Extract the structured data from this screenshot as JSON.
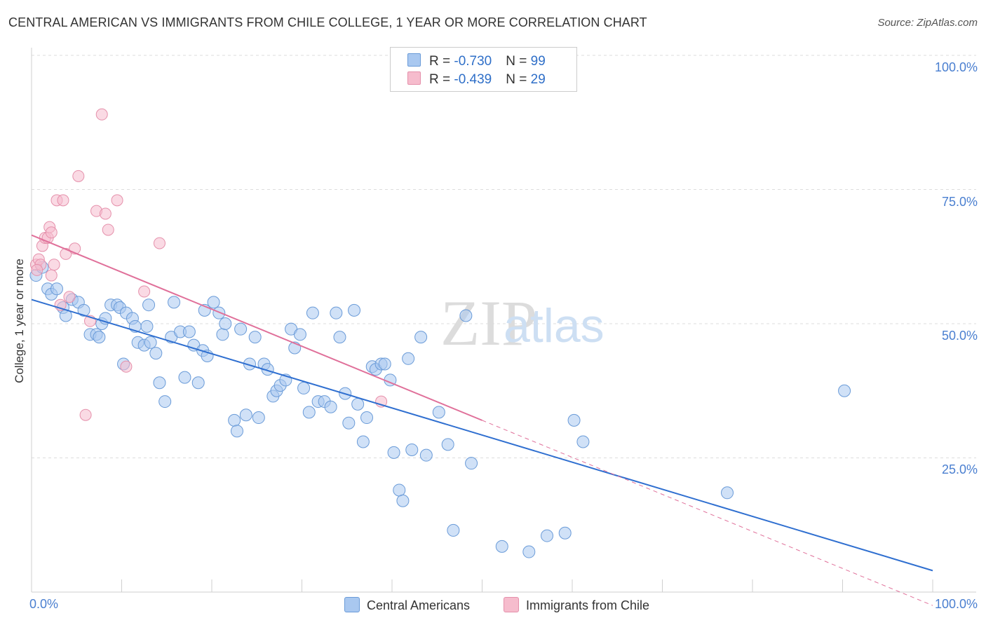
{
  "title": "CENTRAL AMERICAN VS IMMIGRANTS FROM CHILE COLLEGE, 1 YEAR OR MORE CORRELATION CHART",
  "source": "Source: ZipAtlas.com",
  "watermark": {
    "zip": "ZIP",
    "atlas": "atlas"
  },
  "legend": {
    "r_label": "R = ",
    "n_label": "N = ",
    "rows": [
      {
        "r": "-0.730",
        "n": "99",
        "color": "#a9c8f0",
        "edge": "#6a9bd8"
      },
      {
        "r": "-0.439",
        "n": "29",
        "color": "#f6bccd",
        "edge": "#e590ab"
      }
    ]
  },
  "chart_data": {
    "type": "scatter",
    "title": "CENTRAL AMERICAN VS IMMIGRANTS FROM CHILE COLLEGE, 1 YEAR OR MORE CORRELATION CHART",
    "xlabel": "",
    "ylabel": "College, 1 year or more",
    "xlim": [
      0,
      100
    ],
    "ylim": [
      0,
      100
    ],
    "x_tick_labels": [
      "0.0%",
      "100.0%"
    ],
    "y_tick_labels": [
      "100.0%",
      "75.0%",
      "50.0%",
      "25.0%"
    ],
    "y_ticks": [
      100,
      75,
      50,
      25
    ],
    "grid": true,
    "legend_position": "top-center",
    "series": [
      {
        "name": "Central Americans",
        "color": "#a9c8f0",
        "edge": "#6a9bd8",
        "line_color": "#2f6fd0",
        "trend": {
          "x": [
            0,
            100
          ],
          "y": [
            54.5,
            4
          ]
        },
        "points": [
          [
            0.5,
            59
          ],
          [
            1.2,
            60.5
          ],
          [
            1.8,
            56.5
          ],
          [
            2.2,
            55.5
          ],
          [
            2.8,
            56.5
          ],
          [
            3.5,
            53
          ],
          [
            3.8,
            51.5
          ],
          [
            4.5,
            54.5
          ],
          [
            5.2,
            54
          ],
          [
            5.8,
            52.5
          ],
          [
            6.5,
            48
          ],
          [
            7.2,
            48
          ],
          [
            7.5,
            47.5
          ],
          [
            7.8,
            50
          ],
          [
            8.2,
            51
          ],
          [
            8.8,
            53.5
          ],
          [
            9.5,
            53.5
          ],
          [
            9.8,
            53
          ],
          [
            10.2,
            42.5
          ],
          [
            10.5,
            52
          ],
          [
            11.2,
            51
          ],
          [
            11.5,
            49.5
          ],
          [
            11.8,
            46.5
          ],
          [
            12.5,
            46
          ],
          [
            12.8,
            49.5
          ],
          [
            13,
            53.5
          ],
          [
            13.2,
            46.5
          ],
          [
            13.8,
            44.5
          ],
          [
            14.2,
            39
          ],
          [
            14.8,
            35.5
          ],
          [
            15.5,
            47.5
          ],
          [
            15.8,
            54
          ],
          [
            16.5,
            48.5
          ],
          [
            17,
            40
          ],
          [
            17.5,
            48.5
          ],
          [
            18,
            46
          ],
          [
            18.5,
            39
          ],
          [
            19,
            45
          ],
          [
            19.2,
            52.5
          ],
          [
            19.5,
            44
          ],
          [
            20.2,
            54
          ],
          [
            20.8,
            52
          ],
          [
            21.2,
            48
          ],
          [
            21.5,
            50
          ],
          [
            22.5,
            32
          ],
          [
            22.8,
            30
          ],
          [
            23.2,
            49
          ],
          [
            23.8,
            33
          ],
          [
            24.2,
            42.5
          ],
          [
            24.8,
            47.5
          ],
          [
            25.2,
            32.5
          ],
          [
            25.8,
            42.5
          ],
          [
            26.2,
            41.5
          ],
          [
            26.8,
            36.5
          ],
          [
            27.2,
            37.5
          ],
          [
            27.6,
            38.5
          ],
          [
            28.2,
            39.5
          ],
          [
            28.8,
            49
          ],
          [
            29.2,
            45.5
          ],
          [
            29.8,
            48
          ],
          [
            30.2,
            38
          ],
          [
            30.8,
            33.5
          ],
          [
            31.2,
            52
          ],
          [
            31.8,
            35.5
          ],
          [
            32.5,
            35.5
          ],
          [
            33.2,
            34.5
          ],
          [
            33.8,
            52
          ],
          [
            34.2,
            47.5
          ],
          [
            34.8,
            37
          ],
          [
            35.2,
            31.5
          ],
          [
            35.8,
            52.5
          ],
          [
            36.2,
            35
          ],
          [
            36.8,
            28
          ],
          [
            37.2,
            32.5
          ],
          [
            37.8,
            42
          ],
          [
            38.2,
            41.5
          ],
          [
            38.8,
            42.5
          ],
          [
            39.2,
            42.5
          ],
          [
            39.8,
            39.5
          ],
          [
            40.2,
            26
          ],
          [
            40.8,
            19
          ],
          [
            41.2,
            17
          ],
          [
            41.8,
            43.5
          ],
          [
            42.2,
            26.5
          ],
          [
            43.2,
            47.5
          ],
          [
            43.8,
            25.5
          ],
          [
            45.2,
            33.5
          ],
          [
            46.2,
            27.5
          ],
          [
            46.8,
            11.5
          ],
          [
            48.2,
            51.5
          ],
          [
            48.8,
            24
          ],
          [
            52.2,
            8.5
          ],
          [
            55.2,
            7.5
          ],
          [
            57.2,
            10.5
          ],
          [
            59.2,
            11
          ],
          [
            60.2,
            32
          ],
          [
            61.2,
            28
          ],
          [
            77.2,
            18.5
          ],
          [
            90.2,
            37.5
          ]
        ]
      },
      {
        "name": "Immigrants from Chile",
        "color": "#f6bccd",
        "edge": "#e590ab",
        "line_color": "#e0709a",
        "trend": {
          "x": [
            0,
            50
          ],
          "y": [
            66.5,
            32
          ]
        },
        "trend_dashed": {
          "x": [
            50,
            100
          ],
          "y": [
            32,
            -2.5
          ]
        },
        "points": [
          [
            0.5,
            61
          ],
          [
            0.8,
            62
          ],
          [
            1.2,
            64.5
          ],
          [
            1.5,
            66
          ],
          [
            1.8,
            66
          ],
          [
            2.0,
            68
          ],
          [
            2.2,
            67
          ],
          [
            2.5,
            61
          ],
          [
            2.8,
            73
          ],
          [
            3.2,
            53.5
          ],
          [
            3.5,
            73
          ],
          [
            3.8,
            63
          ],
          [
            4.2,
            55
          ],
          [
            4.8,
            64
          ],
          [
            5.2,
            77.5
          ],
          [
            6.0,
            33
          ],
          [
            6.5,
            50.5
          ],
          [
            7.2,
            71
          ],
          [
            7.8,
            89
          ],
          [
            8.2,
            70.5
          ],
          [
            8.5,
            67.5
          ],
          [
            9.5,
            73
          ],
          [
            10.5,
            42
          ],
          [
            12.5,
            56
          ],
          [
            14.2,
            65
          ],
          [
            38.8,
            35.5
          ],
          [
            1.0,
            61
          ],
          [
            0.6,
            60
          ],
          [
            2.2,
            59
          ]
        ]
      }
    ]
  },
  "bottom_legend": [
    "Central Americans",
    "Immigrants from Chile"
  ]
}
